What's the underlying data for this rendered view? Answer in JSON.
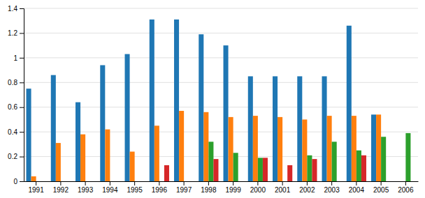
{
  "chart_data": {
    "type": "bar",
    "categories": [
      "1991",
      "1992",
      "1993",
      "1994",
      "1995",
      "1996",
      "1997",
      "1998",
      "1999",
      "2000",
      "2001",
      "2002",
      "2003",
      "2004",
      "2005",
      "2006"
    ],
    "series": [
      {
        "values": [
          0.75,
          0.86,
          0.64,
          0.94,
          1.03,
          1.31,
          1.31,
          1.19,
          1.1,
          0.85,
          0.85,
          0.85,
          0.85,
          1.26,
          0.54,
          0.0
        ]
      },
      {
        "values": [
          0.04,
          0.31,
          0.38,
          0.42,
          0.24,
          0.45,
          0.57,
          0.56,
          0.52,
          0.53,
          0.52,
          0.5,
          0.53,
          0.53,
          0.54,
          0.0
        ]
      },
      {
        "values": [
          0.0,
          0.0,
          0.0,
          0.0,
          0.0,
          0.0,
          0.0,
          0.32,
          0.23,
          0.19,
          0.0,
          0.21,
          0.32,
          0.25,
          0.36,
          0.39
        ]
      },
      {
        "values": [
          0.0,
          0.0,
          0.0,
          0.0,
          0.0,
          0.13,
          0.0,
          0.18,
          0.0,
          0.19,
          0.13,
          0.18,
          0.0,
          0.21,
          0.0,
          0.0
        ]
      }
    ],
    "ylim": [
      0,
      1.4
    ],
    "yticks": [
      0,
      0.2,
      0.4,
      0.6,
      0.8,
      1.0,
      1.2,
      1.4
    ],
    "grid": true
  }
}
